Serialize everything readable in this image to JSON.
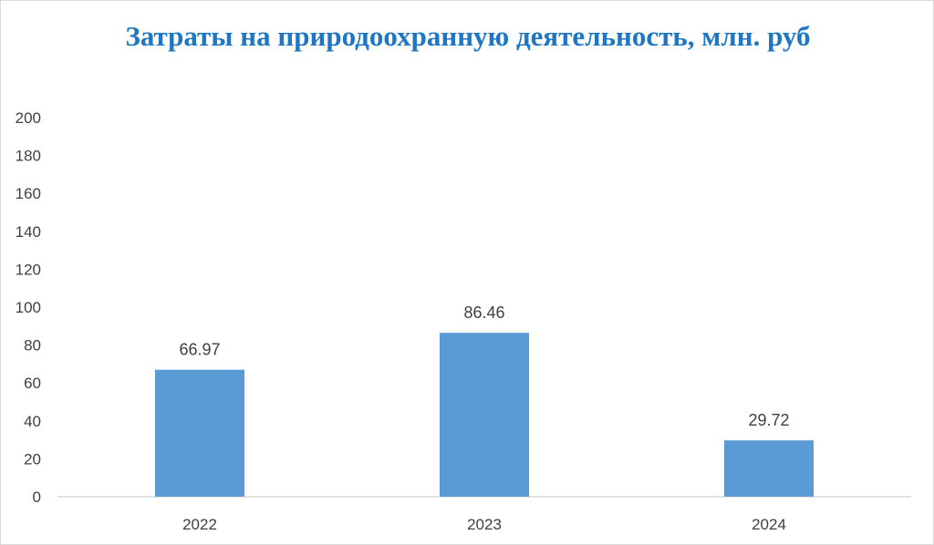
{
  "chart_data": {
    "type": "bar",
    "title": "Затраты на природоохранную деятельность, млн. руб",
    "categories": [
      "2022",
      "2023",
      "2024"
    ],
    "values": [
      66.97,
      86.46,
      29.72
    ],
    "data_labels": [
      "66.97",
      "86.46",
      "29.72"
    ],
    "ylim": [
      0,
      200
    ],
    "yticks": [
      "0",
      "20",
      "40",
      "60",
      "80",
      "100",
      "120",
      "140",
      "160",
      "180",
      "200"
    ],
    "xlabel": "",
    "ylabel": "",
    "grid": false,
    "legend": "none",
    "bar_color": "#5b9bd5",
    "title_color": "#1f77c4"
  }
}
